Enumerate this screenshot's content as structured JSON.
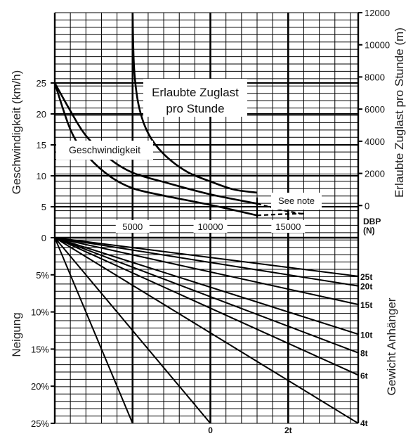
{
  "chart_data": {
    "type": "line",
    "axes": {
      "left_upper": {
        "label": "Geschwindigkeit (km/h)",
        "ticks": [
          "0",
          "5",
          "10",
          "15",
          "20",
          "25"
        ],
        "range": [
          0,
          25
        ]
      },
      "right_upper": {
        "label": "Erlaubte Zuglast pro Stunde (m)",
        "ticks": [
          "0",
          "2000",
          "4000",
          "6000",
          "8000",
          "10000",
          "12000"
        ],
        "range": [
          -2000,
          12000
        ]
      },
      "middle": {
        "unit_label": "DBP",
        "unit_sub": "(N)",
        "ticks": [
          "5000",
          "10000",
          "15000"
        ],
        "range": [
          0,
          19500
        ]
      },
      "left_lower": {
        "label": "Neigung",
        "ticks": [
          "5%",
          "10%",
          "15%",
          "20%",
          "25%"
        ],
        "range": [
          0,
          25
        ]
      },
      "right_lower": {
        "label": "Gewicht Anhänger",
        "ticks": [
          "25t",
          "20t",
          "15t",
          "10t",
          "8t",
          "6t",
          "4t"
        ]
      },
      "bottom": {
        "ticks": [
          "0",
          "2t"
        ]
      }
    },
    "annotations": {
      "speed": "Geschwindigkeit",
      "load_line1": "Erlaubte Zuglast",
      "load_line2": "pro Stunde",
      "note": "See note"
    },
    "speed_curves": [
      {
        "x": [
          0,
          1000,
          2000,
          3500,
          5000,
          7000,
          10000,
          13000
        ],
        "y": [
          25,
          20.5,
          16.5,
          12.8,
          10.5,
          9,
          7,
          5.5
        ]
      },
      {
        "x": [
          0,
          1000,
          2000,
          3500,
          5000,
          7000,
          10000,
          13000
        ],
        "y": [
          25,
          17.5,
          13.5,
          10,
          8,
          6.8,
          5.3,
          3.6
        ]
      }
    ],
    "load_curves": [
      {
        "x": [
          5000,
          5100,
          5400,
          6000,
          7000,
          8500,
          10000,
          11500,
          13000
        ],
        "y": [
          12000,
          8500,
          6200,
          4500,
          3200,
          2100,
          1500,
          1000,
          800
        ]
      }
    ],
    "dashed_curves": [
      {
        "x": [
          13000,
          14500,
          16000
        ],
        "y": [
          5.5,
          4.5,
          3.8
        ]
      },
      {
        "x": [
          13000,
          14500,
          16000
        ],
        "y": [
          3.6,
          3.8,
          3.9
        ]
      }
    ],
    "grade_lines": [
      {
        "name": "25t",
        "end_grade": 5.2
      },
      {
        "name": "20t",
        "end_grade": 6.5
      },
      {
        "name": "15t",
        "end_grade": 9
      },
      {
        "name": "10t",
        "end_grade": 13
      },
      {
        "name": "8t",
        "end_grade": 15.5
      },
      {
        "name": "6t",
        "end_grade": 18.5
      },
      {
        "name": "4t",
        "end_grade": 25
      },
      {
        "name": "",
        "end_grade": 25,
        "end_x": 10000
      },
      {
        "name": "",
        "end_grade": 25,
        "end_x": 5000
      }
    ]
  }
}
